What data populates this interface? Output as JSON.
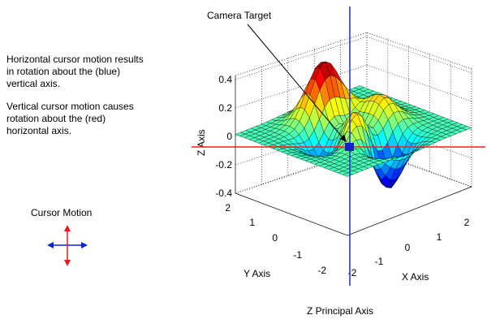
{
  "descriptions": {
    "horizontal": "Horizontal cursor motion results in rotation about the (blue) vertical axis.",
    "vertical": "Vertical cursor motion causes rotation about the (red) horizontal axis."
  },
  "labels": {
    "camera_target": "Camera Target",
    "cursor_motion": "Cursor Motion",
    "z_axis": "Z Axis",
    "y_axis": "Y Axis",
    "x_axis": "X Axis",
    "z_principal_axis": "Z Principal Axis"
  },
  "ticks": {
    "z": [
      "0.4",
      "0.2",
      "0",
      "-0.2",
      "-0.4"
    ],
    "y": [
      "2",
      "1",
      "0",
      "-1",
      "-2"
    ],
    "x": [
      "-2",
      "-1",
      "0",
      "1",
      "2"
    ]
  },
  "colors": {
    "vertical_axis": "#1f2fd6",
    "horizontal_axis": "#ff1a1a",
    "cursor_horizontal": "#0a22d4",
    "cursor_vertical": "#e81a1a"
  },
  "surface": {
    "function": "peaks",
    "x_range": [
      -3,
      3
    ],
    "y_range": [
      -3,
      3
    ],
    "grid": 24
  }
}
